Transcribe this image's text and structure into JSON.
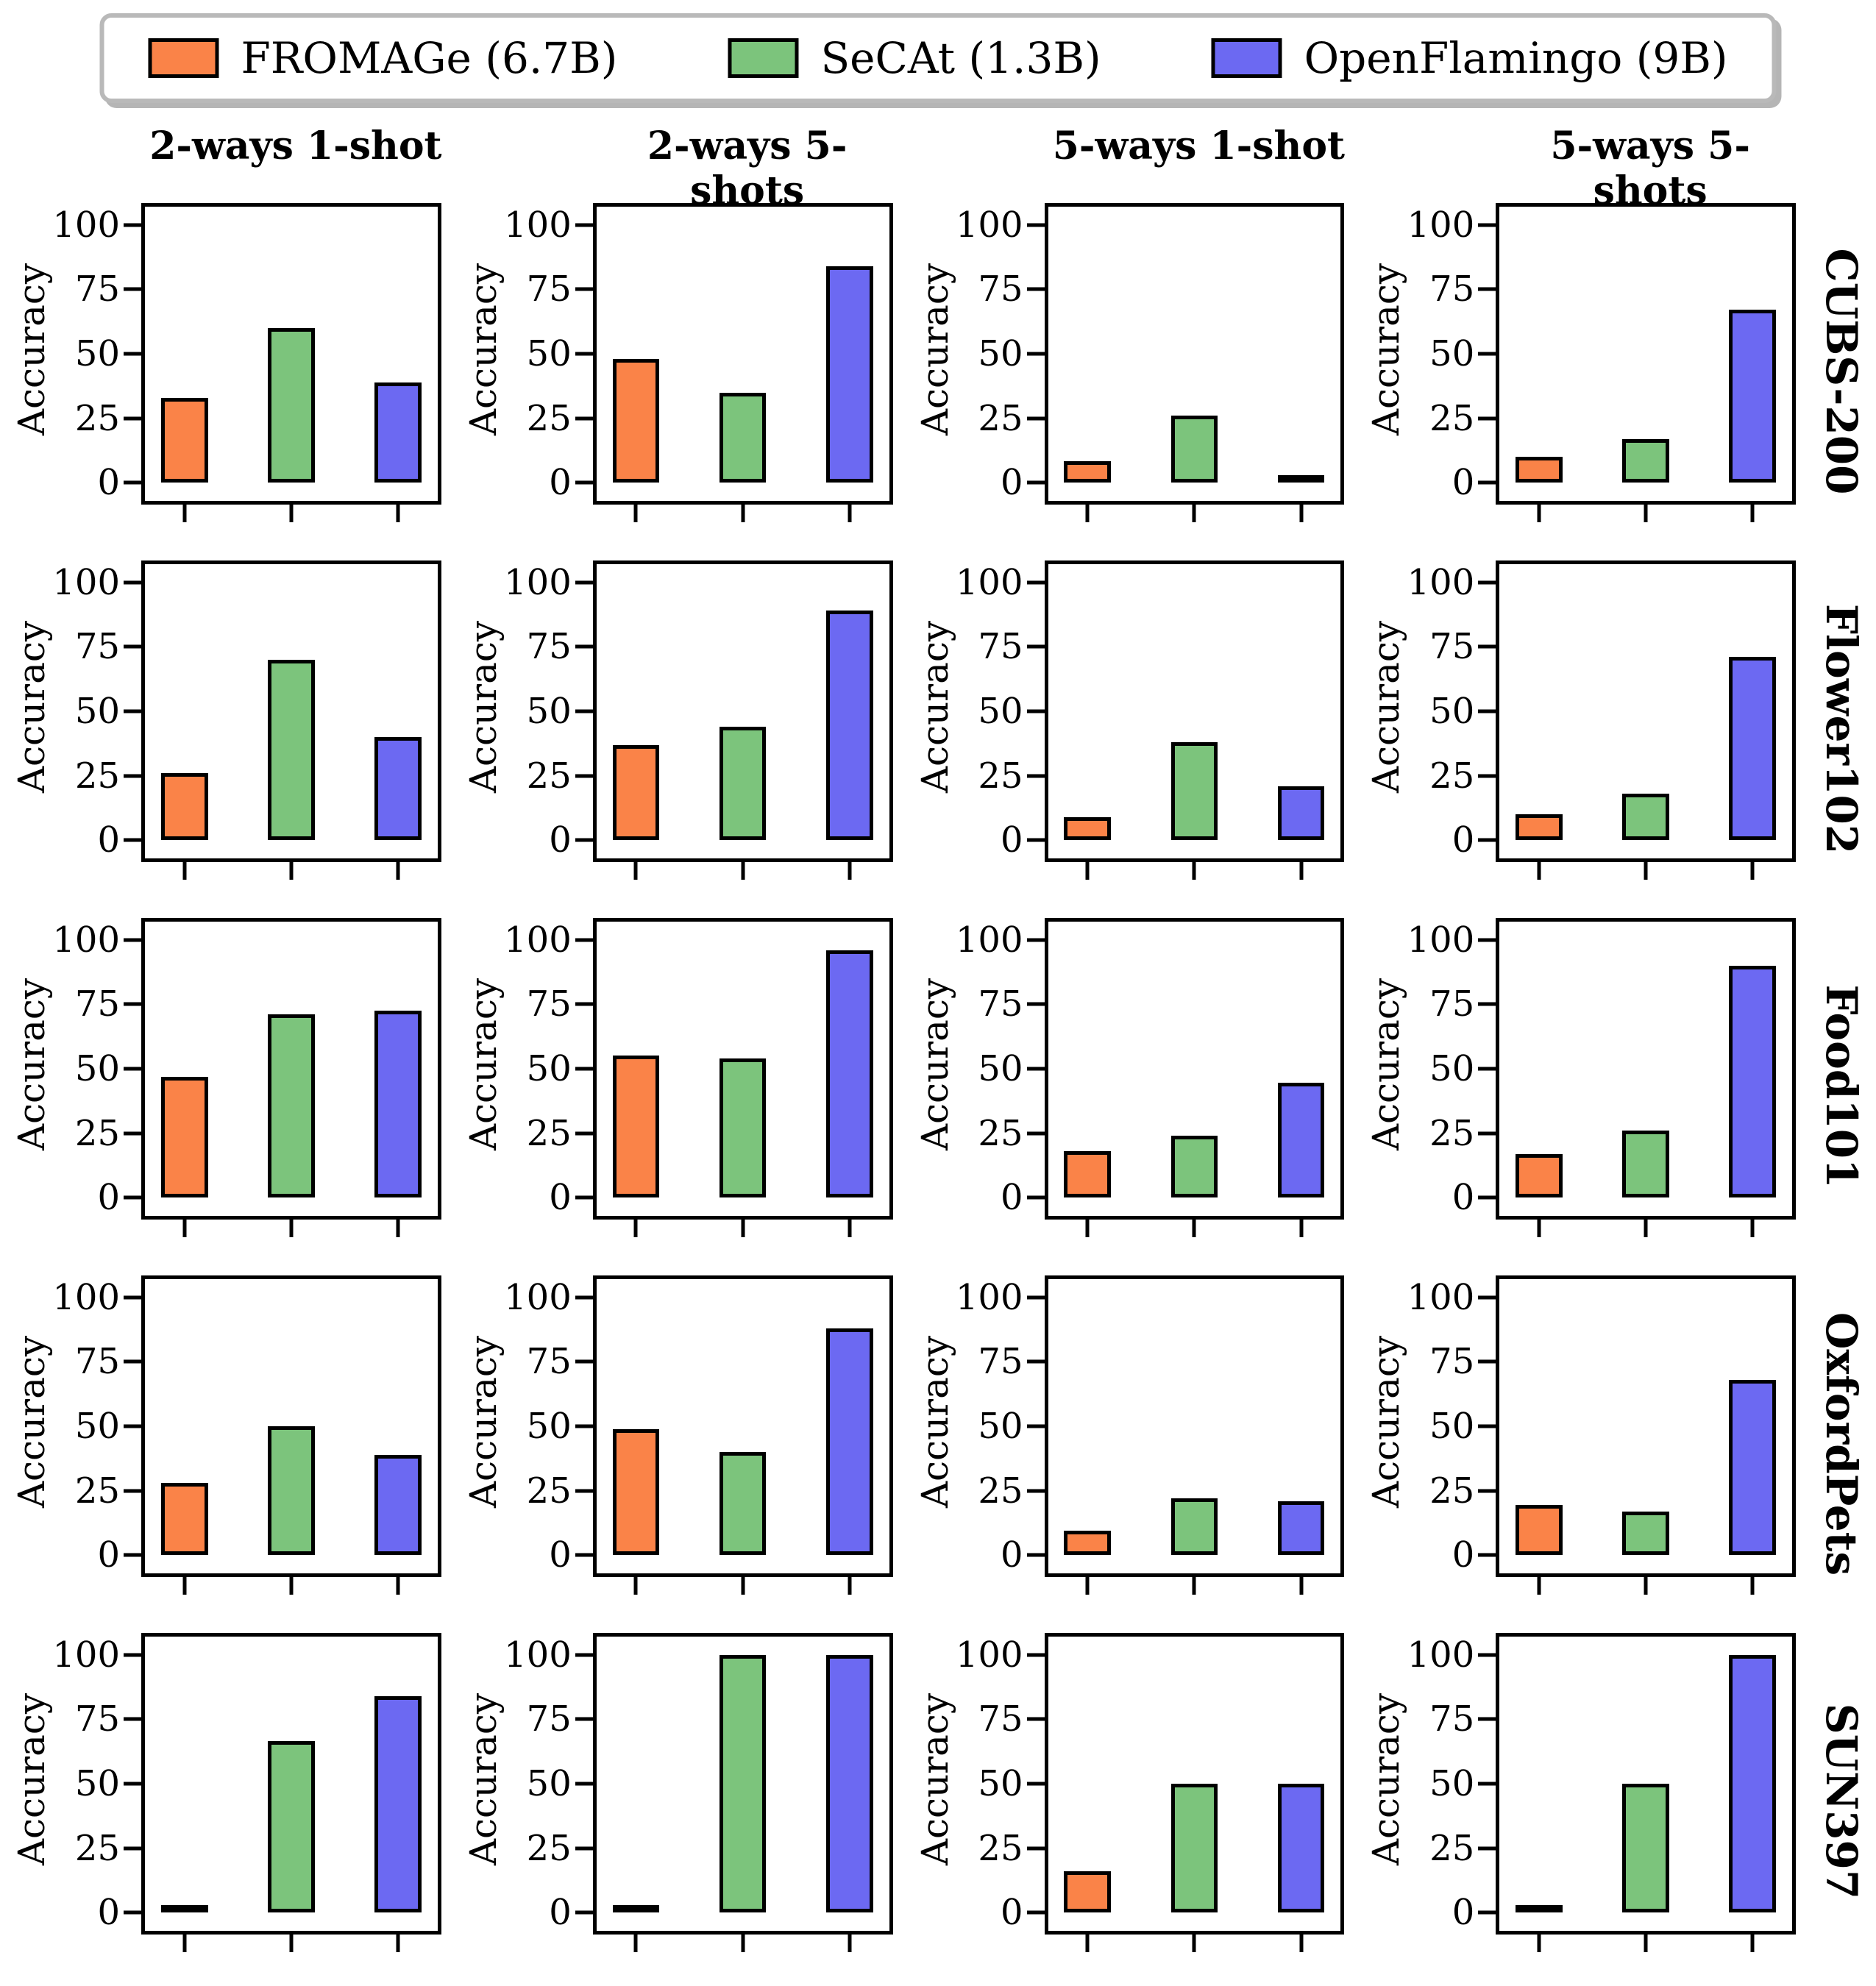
{
  "chart_data": {
    "type": "bar",
    "ylabel": "Accuracy",
    "yticks": [
      0,
      25,
      50,
      75,
      100
    ],
    "ylim": [
      -7,
      107
    ],
    "grid": "off",
    "legend_position": "top-center",
    "series": [
      "FROMAGe (6.7B)",
      "SeCAt (1.3B)",
      "OpenFlamingo (9B)"
    ],
    "colors": [
      "#FA8348",
      "#7CC47C",
      "#6C69F2"
    ],
    "columns": [
      "2-ways 1-shot",
      "2-ways 5-shots",
      "5-ways 1-shot",
      "5-ways 5-shots"
    ],
    "rows": [
      "CUBS-200",
      "Flower102",
      "Food101",
      "OxfordPets",
      "SUN397"
    ],
    "values": [
      [
        [
          33,
          60,
          39
        ],
        [
          48,
          35,
          84
        ],
        [
          8.5,
          26,
          2.5
        ],
        [
          10,
          17,
          67
        ]
      ],
      [
        [
          26,
          70,
          40
        ],
        [
          37,
          44,
          89
        ],
        [
          9,
          38,
          21
        ],
        [
          10,
          18,
          71
        ]
      ],
      [
        [
          47,
          71,
          72.5
        ],
        [
          55,
          54,
          96
        ],
        [
          18,
          24,
          44.5
        ],
        [
          17,
          26,
          90
        ]
      ],
      [
        [
          28,
          50,
          39
        ],
        [
          49,
          40,
          88
        ],
        [
          9.5,
          22,
          21
        ],
        [
          19.5,
          17,
          68
        ]
      ],
      [
        [
          1,
          66.5,
          84
        ],
        [
          1,
          100,
          100
        ],
        [
          16,
          50,
          50
        ],
        [
          1,
          50,
          100
        ]
      ]
    ],
    "bar_centers_pct": [
      13.5,
      50,
      86.5
    ],
    "bar_width_pct": 16
  }
}
